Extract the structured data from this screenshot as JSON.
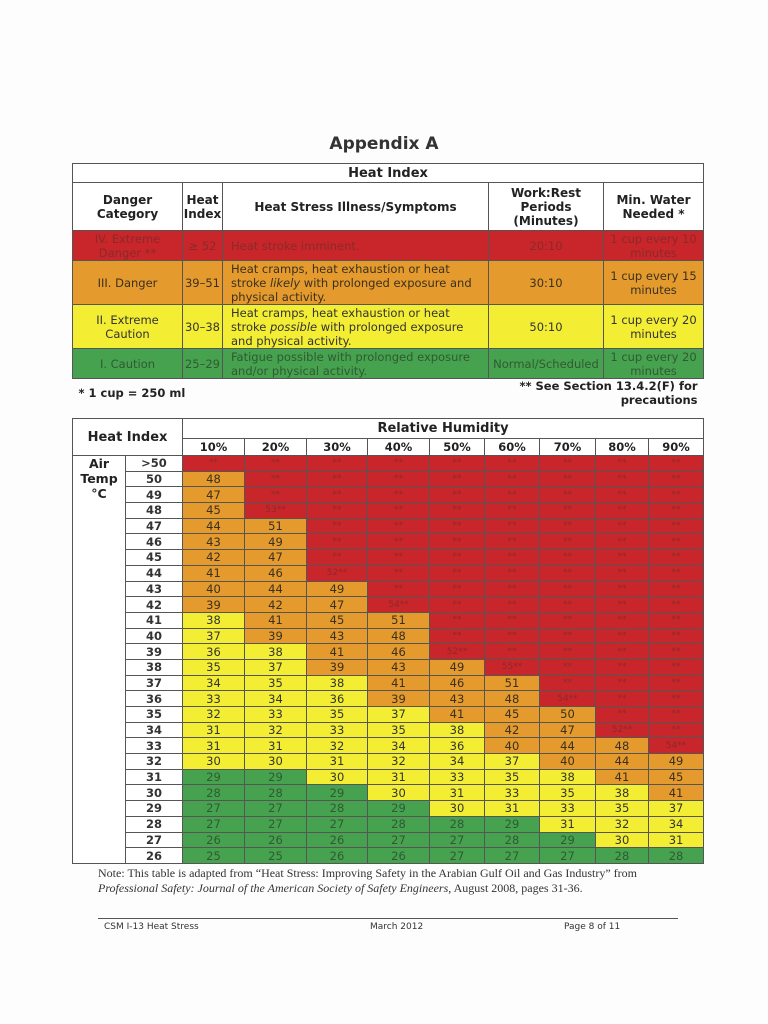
{
  "title": "Appendix A",
  "summary_table": {
    "title": "Heat Index",
    "headers": [
      "Danger Category",
      "Heat Index",
      "Heat Stress Illness/Symptoms",
      "Work:Rest Periods (Minutes)",
      "Min. Water Needed *"
    ],
    "rows": [
      {
        "category": "IV. Extreme Danger **",
        "index": "≥ 52",
        "symptoms": "Heat stroke imminent.",
        "work_rest": "20:10",
        "water": "1 cup every 10 minutes",
        "color": "#c8262a"
      },
      {
        "category": "III. Danger",
        "index": "39–51",
        "symptoms": "Heat cramps, heat exhaustion or heat stroke likely with prolonged exposure and physical activity.",
        "work_rest": "30:10",
        "water": "1 cup every 15 minutes",
        "color": "#e49a2c"
      },
      {
        "category": "II. Extreme Caution",
        "index": "30–38",
        "symptoms": "Heat cramps, heat exhaustion or heat stroke possible with prolonged exposure and physical activity.",
        "work_rest": "50:10",
        "water": "1 cup every 20 minutes",
        "color": "#f3ee33"
      },
      {
        "category": "I. Caution",
        "index": "25–29",
        "symptoms": "Fatigue possible with prolonged exposure and/or physical activity.",
        "work_rest": "Normal/Scheduled",
        "water": "1 cup every 20 minutes",
        "color": "#46a24e"
      }
    ],
    "footnote_left": "* 1 cup = 250 ml",
    "footnote_right": "** See Section 13.4.2(F) for precautions"
  },
  "index_table": {
    "corner": "Heat Index",
    "humidity_label": "Relative Humidity",
    "humidity": [
      "10%",
      "20%",
      "30%",
      "40%",
      "50%",
      "60%",
      "70%",
      "80%",
      "90%"
    ],
    "temp_label": "Air Temp °C",
    "rows": [
      {
        "t": ">50",
        "v": [
          "**",
          "**",
          "**",
          "**",
          "**",
          "**",
          "**",
          "**",
          "**"
        ]
      },
      {
        "t": "50",
        "v": [
          "48",
          "**",
          "**",
          "**",
          "**",
          "**",
          "**",
          "**",
          "**"
        ]
      },
      {
        "t": "49",
        "v": [
          "47",
          "**",
          "**",
          "**",
          "**",
          "**",
          "**",
          "**",
          "**"
        ]
      },
      {
        "t": "48",
        "v": [
          "45",
          "53**",
          "**",
          "**",
          "**",
          "**",
          "**",
          "**",
          "**"
        ]
      },
      {
        "t": "47",
        "v": [
          "44",
          "51",
          "**",
          "**",
          "**",
          "**",
          "**",
          "**",
          "**"
        ]
      },
      {
        "t": "46",
        "v": [
          "43",
          "49",
          "**",
          "**",
          "**",
          "**",
          "**",
          "**",
          "**"
        ]
      },
      {
        "t": "45",
        "v": [
          "42",
          "47",
          "**",
          "**",
          "**",
          "**",
          "**",
          "**",
          "**"
        ]
      },
      {
        "t": "44",
        "v": [
          "41",
          "46",
          "52**",
          "**",
          "**",
          "**",
          "**",
          "**",
          "**"
        ]
      },
      {
        "t": "43",
        "v": [
          "40",
          "44",
          "49",
          "**",
          "**",
          "**",
          "**",
          "**",
          "**"
        ]
      },
      {
        "t": "42",
        "v": [
          "39",
          "42",
          "47",
          "54**",
          "**",
          "**",
          "**",
          "**",
          "**"
        ]
      },
      {
        "t": "41",
        "v": [
          "38",
          "41",
          "45",
          "51",
          "**",
          "**",
          "**",
          "**",
          "**"
        ]
      },
      {
        "t": "40",
        "v": [
          "37",
          "39",
          "43",
          "48",
          "**",
          "**",
          "**",
          "**",
          "**"
        ]
      },
      {
        "t": "39",
        "v": [
          "36",
          "38",
          "41",
          "46",
          "52**",
          "**",
          "**",
          "**",
          "**"
        ]
      },
      {
        "t": "38",
        "v": [
          "35",
          "37",
          "39",
          "43",
          "49",
          "55**",
          "**",
          "**",
          "**"
        ]
      },
      {
        "t": "37",
        "v": [
          "34",
          "35",
          "38",
          "41",
          "46",
          "51",
          "**",
          "**",
          "**"
        ]
      },
      {
        "t": "36",
        "v": [
          "33",
          "34",
          "36",
          "39",
          "43",
          "48",
          "54**",
          "**",
          "**"
        ]
      },
      {
        "t": "35",
        "v": [
          "32",
          "33",
          "35",
          "37",
          "41",
          "45",
          "50",
          "**",
          "**"
        ]
      },
      {
        "t": "34",
        "v": [
          "31",
          "32",
          "33",
          "35",
          "38",
          "42",
          "47",
          "52**",
          "**"
        ]
      },
      {
        "t": "33",
        "v": [
          "31",
          "31",
          "32",
          "34",
          "36",
          "40",
          "44",
          "48",
          "54**"
        ]
      },
      {
        "t": "32",
        "v": [
          "30",
          "30",
          "31",
          "32",
          "34",
          "37",
          "40",
          "44",
          "49"
        ]
      },
      {
        "t": "31",
        "v": [
          "29",
          "29",
          "30",
          "31",
          "33",
          "35",
          "38",
          "41",
          "45"
        ]
      },
      {
        "t": "30",
        "v": [
          "28",
          "28",
          "29",
          "30",
          "31",
          "33",
          "35",
          "38",
          "41"
        ]
      },
      {
        "t": "29",
        "v": [
          "27",
          "27",
          "28",
          "29",
          "30",
          "31",
          "33",
          "35",
          "37"
        ]
      },
      {
        "t": "28",
        "v": [
          "27",
          "27",
          "27",
          "28",
          "28",
          "29",
          "31",
          "32",
          "34"
        ]
      },
      {
        "t": "27",
        "v": [
          "26",
          "26",
          "26",
          "27",
          "27",
          "28",
          "29",
          "30",
          "31"
        ]
      },
      {
        "t": "26",
        "v": [
          "25",
          "25",
          "26",
          "26",
          "27",
          "27",
          "27",
          "28",
          "28"
        ]
      }
    ]
  },
  "note": "Note: This table is adapted from “Heat Stress: Improving Safety in the Arabian Gulf Oil and Gas Industry” from",
  "note_source": "Professional Safety: Journal of the American Society of Safety Engineers",
  "note_tail": ", August 2008, pages 31-36.",
  "footer": {
    "doc": "CSM I-13 Heat Stress",
    "date": "March 2012",
    "page": "Page 8 of 11"
  }
}
